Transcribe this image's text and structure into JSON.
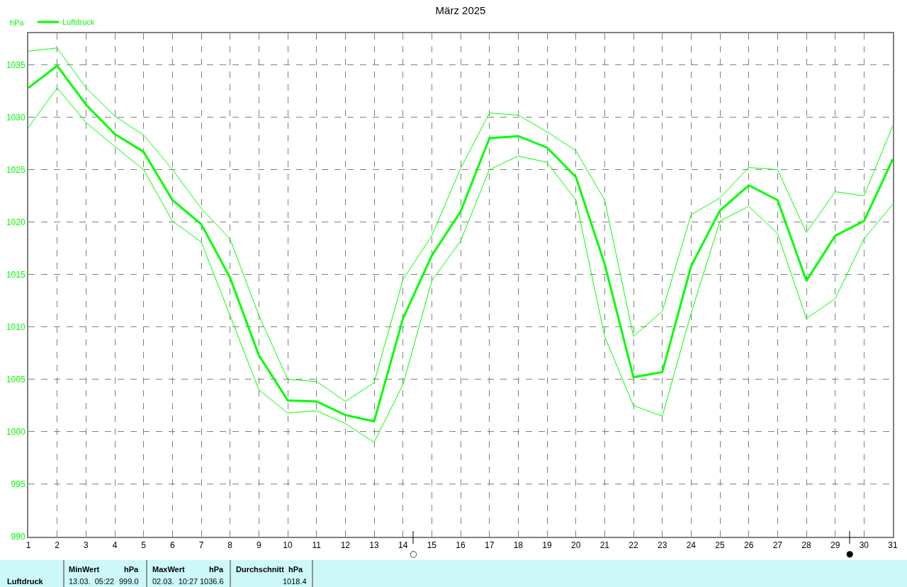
{
  "chart_data": {
    "type": "line",
    "title": "März 2025",
    "ylabel": "hPa",
    "x": [
      1,
      2,
      3,
      4,
      5,
      6,
      7,
      8,
      9,
      10,
      11,
      12,
      13,
      14,
      15,
      16,
      17,
      18,
      19,
      20,
      21,
      22,
      23,
      24,
      25,
      26,
      27,
      28,
      29,
      30,
      31
    ],
    "series": [
      {
        "name": "Luftdruck",
        "color": "#00ff00",
        "values": [
          1032.8,
          1034.9,
          1031.2,
          1028.4,
          1026.7,
          1022.1,
          1019.8,
          1014.7,
          1007.3,
          1003.0,
          1002.9,
          1001.6,
          1001.0,
          1010.8,
          1016.8,
          1021.0,
          1028.0,
          1028.2,
          1027.1,
          1024.3,
          1016.0,
          1005.2,
          1005.7,
          1015.8,
          1021.1,
          1023.5,
          1022.1,
          1014.4,
          1018.7,
          1020.1,
          1026.0
        ]
      },
      {
        "color": "#00ff00",
        "values": [
          1036.3,
          1036.6,
          1032.8,
          1030.1,
          1028.3,
          1025.0,
          1021.3,
          1018.4,
          1011.1,
          1005.0,
          1004.8,
          1002.9,
          1004.7,
          1014.5,
          1018.7,
          1025.1,
          1030.4,
          1030.2,
          1028.6,
          1026.8,
          1022.1,
          1009.1,
          1011.5,
          1020.7,
          1022.3,
          1025.2,
          1025.0,
          1019.0,
          1022.9,
          1022.5,
          1029.2
        ]
      },
      {
        "color": "#00ff00",
        "values": [
          1029.0,
          1032.8,
          1029.5,
          1027.2,
          1025.0,
          1020.1,
          1018.1,
          1011.1,
          1004.0,
          1001.8,
          1002.0,
          1000.8,
          999.0,
          1004.5,
          1014.4,
          1018.2,
          1025.0,
          1026.3,
          1025.7,
          1022.1,
          1009.1,
          1002.5,
          1001.5,
          1011.3,
          1020.1,
          1021.5,
          1018.9,
          1010.8,
          1012.7,
          1018.4,
          1021.7
        ]
      }
    ],
    "xlim": [
      1,
      31
    ],
    "xticks": [
      1,
      2,
      3,
      4,
      5,
      6,
      7,
      8,
      9,
      10,
      11,
      12,
      13,
      14,
      15,
      16,
      17,
      18,
      19,
      20,
      21,
      22,
      23,
      24,
      25,
      26,
      27,
      28,
      29,
      30,
      31
    ],
    "ylim": [
      990,
      1038
    ],
    "yticks": [
      990,
      995,
      1000,
      1005,
      1010,
      1015,
      1020,
      1025,
      1030,
      1035
    ],
    "grid": true,
    "legend": "top left",
    "marker": "none",
    "line_style": "solid",
    "annotations": [
      "○",
      "●",
      "Luftdruck",
      "MinWert",
      "hPa",
      "13.03.  05:22",
      "999.0",
      "MaxWert",
      "hPa",
      "02.03.  10:27",
      "1036.6",
      "Durchschnitt  hPa",
      "1018.4"
    ]
  }
}
